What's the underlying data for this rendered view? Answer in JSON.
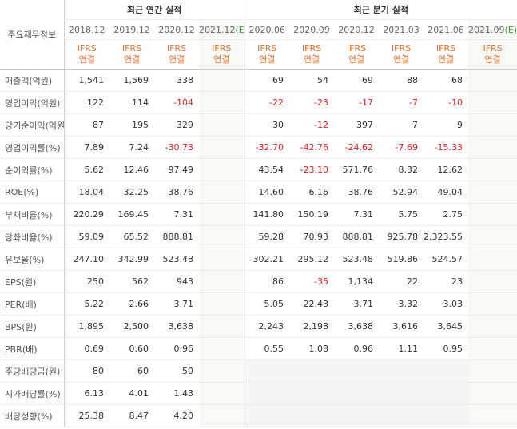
{
  "table": {
    "corner": "주요재무정보",
    "groups": [
      {
        "label": "최근 연간 실적",
        "span": 4
      },
      {
        "label": "최근 분기 실적",
        "span": 6
      }
    ],
    "columns": [
      {
        "period": "2018.12",
        "basis": [
          "IFRS",
          "연결"
        ]
      },
      {
        "period": "2019.12",
        "basis": [
          "IFRS",
          "연결"
        ]
      },
      {
        "period": "2020.12",
        "basis": [
          "IFRS",
          "연결"
        ]
      },
      {
        "period": "2021.12",
        "mark": "(E)",
        "basis": [
          "IFRS",
          "연결"
        ]
      },
      {
        "period": "2020.06",
        "basis": [
          "IFRS",
          "연결"
        ]
      },
      {
        "period": "2020.09",
        "basis": [
          "IFRS",
          "연결"
        ]
      },
      {
        "period": "2020.12",
        "basis": [
          "IFRS",
          "연결"
        ]
      },
      {
        "period": "2021.03",
        "basis": [
          "IFRS",
          "연결"
        ]
      },
      {
        "period": "2021.06",
        "basis": [
          "IFRS",
          "연결"
        ]
      },
      {
        "period": "2021.09",
        "mark": "(E)",
        "basis": [
          "IFRS",
          "연결"
        ]
      }
    ],
    "sections": [
      {
        "rows": [
          {
            "label": "매출액(억원)",
            "values": [
              "1,541",
              "1,569",
              "338",
              null,
              "69",
              "54",
              "69",
              "88",
              "68",
              null
            ]
          },
          {
            "label": "영업이익(억원)",
            "values": [
              "122",
              "114",
              "-104",
              null,
              "-22",
              "-23",
              "-17",
              "-7",
              "-10",
              null
            ]
          },
          {
            "label": "당기순이익(억원)",
            "values": [
              "87",
              "195",
              "329",
              null,
              "30",
              "-12",
              "397",
              "7",
              "9",
              null
            ]
          }
        ]
      },
      {
        "rows": [
          {
            "label": "영업이익률(%)",
            "values": [
              "7.89",
              "7.24",
              "-30.73",
              null,
              "-32.70",
              "-42.76",
              "-24.62",
              "-7.69",
              "-15.33",
              null
            ]
          },
          {
            "label": "순이익률(%)",
            "values": [
              "5.62",
              "12.46",
              "97.49",
              null,
              "43.54",
              "-23.10",
              "571.76",
              "8.32",
              "12.62",
              null
            ]
          },
          {
            "label": "ROE(%)",
            "values": [
              "18.04",
              "32.25",
              "38.76",
              null,
              "14.60",
              "6.16",
              "38.76",
              "52.94",
              "49.04",
              null
            ]
          }
        ]
      },
      {
        "rows": [
          {
            "label": "부채비율(%)",
            "values": [
              "220.29",
              "169.45",
              "7.31",
              null,
              "141.80",
              "150.19",
              "7.31",
              "5.75",
              "2.75",
              null
            ]
          },
          {
            "label": "당좌비율(%)",
            "values": [
              "59.09",
              "65.52",
              "888.81",
              null,
              "59.28",
              "70.93",
              "888.81",
              "925.78",
              "2,323.55",
              null
            ]
          },
          {
            "label": "유보율(%)",
            "values": [
              "247.10",
              "342.99",
              "523.48",
              null,
              "302.21",
              "295.12",
              "523.48",
              "519.86",
              "524.57",
              null
            ]
          }
        ]
      },
      {
        "rows": [
          {
            "label": "EPS(원)",
            "values": [
              "250",
              "562",
              "943",
              null,
              "86",
              "-35",
              "1,134",
              "22",
              "23",
              null
            ]
          },
          {
            "label": "PER(배)",
            "values": [
              "5.22",
              "2.66",
              "3.71",
              null,
              "5.05",
              "22.43",
              "3.71",
              "3.32",
              "3.03",
              null
            ]
          },
          {
            "label": "BPS(원)",
            "values": [
              "1,895",
              "2,500",
              "3,638",
              null,
              "2,243",
              "2,198",
              "3,638",
              "3,616",
              "3,645",
              null
            ]
          },
          {
            "label": "PBR(배)",
            "values": [
              "0.69",
              "0.60",
              "0.96",
              null,
              "0.55",
              "1.08",
              "0.96",
              "1.11",
              "0.95",
              null
            ]
          }
        ]
      },
      {
        "rows": [
          {
            "label": "주당배당금(원)",
            "values": [
              "80",
              "60",
              "50",
              null,
              null,
              null,
              null,
              null,
              null,
              null
            ]
          },
          {
            "label": "시가배당률(%)",
            "values": [
              "6.13",
              "4.01",
              "1.43",
              null,
              null,
              null,
              null,
              null,
              null,
              null
            ]
          },
          {
            "label": "배당성향(%)",
            "values": [
              "25.38",
              "8.47",
              "4.20",
              null,
              null,
              null,
              null,
              null,
              null,
              null
            ]
          }
        ]
      }
    ]
  }
}
